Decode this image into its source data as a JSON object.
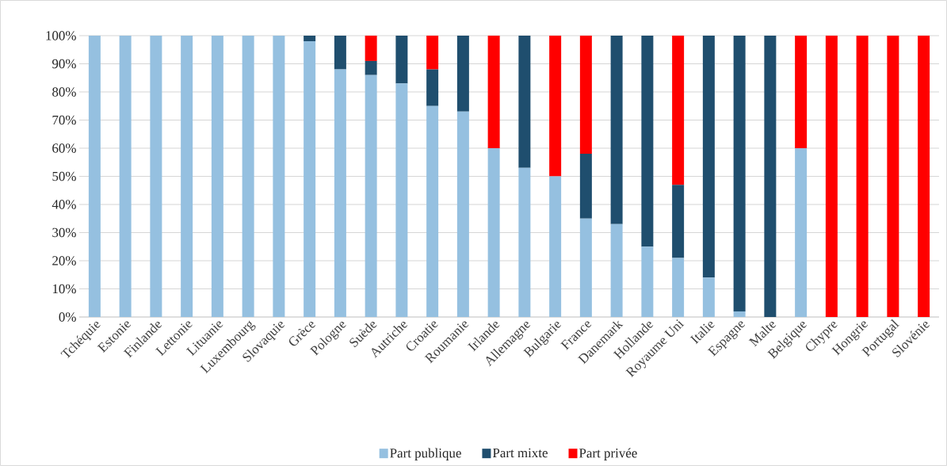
{
  "chart_data": {
    "type": "bar",
    "stacked": true,
    "grid": "y",
    "legend": "bottom",
    "categories": [
      "Tchéquie",
      "Estonie",
      "Finlande",
      "Lettonie",
      "Lituanie",
      "Luxembourg",
      "Slovaquie",
      "Grèce",
      "Pologne",
      "Suède",
      "Autriche",
      "Croatie",
      "Roumanie",
      "Irlande",
      "Allemagne",
      "Bulgarie",
      "France",
      "Danemark",
      "Hollande",
      "Royaume Uni",
      "Italie",
      "Espagne",
      "Malte",
      "Belgique",
      "Chypre",
      "Hongrie",
      "Portugal",
      "Slovénie"
    ],
    "series": [
      {
        "name": "Part publique",
        "color": "#95c0e0",
        "values": [
          100,
          100,
          100,
          100,
          100,
          100,
          100,
          98,
          88,
          86,
          83,
          75,
          73,
          60,
          53,
          50,
          35,
          33,
          25,
          21,
          14,
          2,
          0,
          60,
          0,
          0,
          0,
          0
        ]
      },
      {
        "name": "Part mixte",
        "color": "#1f4e6e",
        "values": [
          0,
          0,
          0,
          0,
          0,
          0,
          0,
          2,
          12,
          5,
          17,
          13,
          27,
          0,
          47,
          0,
          23,
          67,
          75,
          26,
          86,
          98,
          100,
          0,
          0,
          0,
          0,
          0
        ]
      },
      {
        "name": "Part privée",
        "color": "#ff0000",
        "values": [
          0,
          0,
          0,
          0,
          0,
          0,
          0,
          0,
          0,
          9,
          0,
          12,
          0,
          40,
          0,
          50,
          42,
          0,
          0,
          53,
          0,
          0,
          0,
          40,
          100,
          100,
          100,
          100
        ]
      }
    ],
    "ylim": [
      0,
      100
    ],
    "yticks": [
      {
        "value": 0,
        "label": "0%"
      },
      {
        "value": 10,
        "label": "10%"
      },
      {
        "value": 20,
        "label": "20%"
      },
      {
        "value": 30,
        "label": "30%"
      },
      {
        "value": 40,
        "label": "40%"
      },
      {
        "value": 50,
        "label": "50%"
      },
      {
        "value": 60,
        "label": "60%"
      },
      {
        "value": 70,
        "label": "70%"
      },
      {
        "value": 80,
        "label": "80%"
      },
      {
        "value": 90,
        "label": "90%"
      },
      {
        "value": 100,
        "label": "100%"
      }
    ]
  }
}
